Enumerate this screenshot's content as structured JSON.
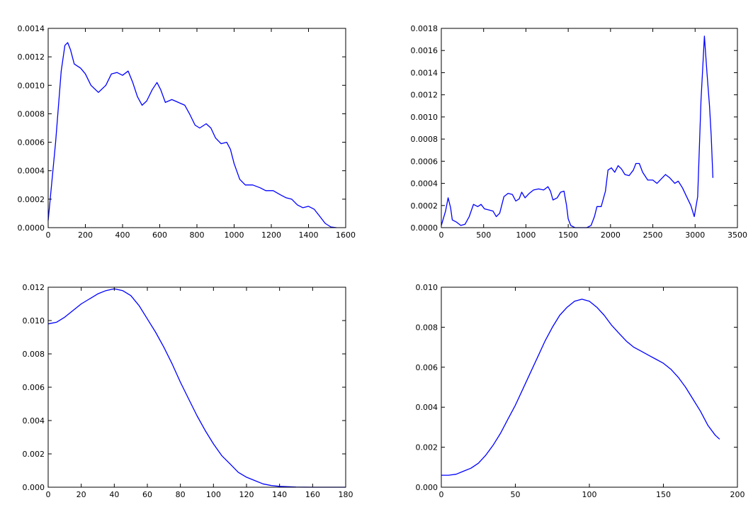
{
  "chart_data": [
    {
      "type": "line",
      "title": "",
      "xlabel": "",
      "ylabel": "",
      "xlim": [
        0,
        1600
      ],
      "ylim": [
        0,
        0.0014
      ],
      "xticks": [
        0,
        200,
        400,
        600,
        800,
        1000,
        1200,
        1400,
        1600
      ],
      "yticks": [
        0,
        0.0002,
        0.0004,
        0.0006,
        0.0008,
        0.001,
        0.0012,
        0.0014
      ],
      "xtick_labels": [
        "0",
        "200",
        "400",
        "600",
        "800",
        "1000",
        "1200",
        "1400",
        "1600"
      ],
      "ytick_labels": [
        "0.0000",
        "0.0002",
        "0.0004",
        "0.0006",
        "0.0008",
        "0.0010",
        "0.0012",
        "0.0014"
      ],
      "grid": false,
      "series": [
        {
          "color": "#0000ff",
          "points": [
            [
              0,
              5e-05
            ],
            [
              40,
              0.0006
            ],
            [
              70,
              0.0011
            ],
            [
              90,
              0.00128
            ],
            [
              105,
              0.0013
            ],
            [
              120,
              0.00125
            ],
            [
              140,
              0.00115
            ],
            [
              175,
              0.00112
            ],
            [
              200,
              0.00108
            ],
            [
              230,
              0.001
            ],
            [
              270,
              0.00095
            ],
            [
              310,
              0.001
            ],
            [
              340,
              0.00108
            ],
            [
              370,
              0.00109
            ],
            [
              400,
              0.00107
            ],
            [
              430,
              0.0011
            ],
            [
              455,
              0.00102
            ],
            [
              480,
              0.00092
            ],
            [
              505,
              0.00086
            ],
            [
              530,
              0.00089
            ],
            [
              560,
              0.00097
            ],
            [
              585,
              0.00102
            ],
            [
              605,
              0.00097
            ],
            [
              630,
              0.00088
            ],
            [
              665,
              0.0009
            ],
            [
              700,
              0.00088
            ],
            [
              735,
              0.00086
            ],
            [
              760,
              0.0008
            ],
            [
              790,
              0.00072
            ],
            [
              815,
              0.0007
            ],
            [
              850,
              0.00073
            ],
            [
              875,
              0.0007
            ],
            [
              900,
              0.00063
            ],
            [
              930,
              0.00059
            ],
            [
              960,
              0.0006
            ],
            [
              980,
              0.00055
            ],
            [
              1000,
              0.00045
            ],
            [
              1030,
              0.00034
            ],
            [
              1060,
              0.0003
            ],
            [
              1100,
              0.0003
            ],
            [
              1140,
              0.00028
            ],
            [
              1170,
              0.00026
            ],
            [
              1210,
              0.00026
            ],
            [
              1250,
              0.00023
            ],
            [
              1280,
              0.00021
            ],
            [
              1310,
              0.0002
            ],
            [
              1340,
              0.00016
            ],
            [
              1370,
              0.00014
            ],
            [
              1400,
              0.00015
            ],
            [
              1430,
              0.00013
            ],
            [
              1460,
              8e-05
            ],
            [
              1490,
              3e-05
            ],
            [
              1520,
              5e-06
            ],
            [
              1550,
              0
            ]
          ]
        }
      ]
    },
    {
      "type": "line",
      "title": "",
      "xlabel": "",
      "ylabel": "",
      "xlim": [
        0,
        3500
      ],
      "ylim": [
        0,
        0.0018
      ],
      "xticks": [
        0,
        500,
        1000,
        1500,
        2000,
        2500,
        3000,
        3500
      ],
      "yticks": [
        0,
        0.0002,
        0.0004,
        0.0006,
        0.0008,
        0.001,
        0.0012,
        0.0014,
        0.0016,
        0.0018
      ],
      "xtick_labels": [
        "0",
        "500",
        "1000",
        "1500",
        "2000",
        "2500",
        "3000",
        "3500"
      ],
      "ytick_labels": [
        "0.0000",
        "0.0002",
        "0.0004",
        "0.0006",
        "0.0008",
        "0.0010",
        "0.0012",
        "0.0014",
        "0.0016",
        "0.0018"
      ],
      "grid": false,
      "series": [
        {
          "color": "#0000ff",
          "points": [
            [
              0,
              2e-05
            ],
            [
              50,
              0.00015
            ],
            [
              80,
              0.00027
            ],
            [
              110,
              0.00018
            ],
            [
              130,
              7e-05
            ],
            [
              180,
              5e-05
            ],
            [
              230,
              2e-05
            ],
            [
              280,
              3e-05
            ],
            [
              330,
              0.0001
            ],
            [
              380,
              0.00021
            ],
            [
              430,
              0.00019
            ],
            [
              470,
              0.00021
            ],
            [
              510,
              0.00017
            ],
            [
              560,
              0.00016
            ],
            [
              610,
              0.00015
            ],
            [
              650,
              0.0001
            ],
            [
              690,
              0.00013
            ],
            [
              740,
              0.00028
            ],
            [
              790,
              0.00031
            ],
            [
              840,
              0.0003
            ],
            [
              880,
              0.00024
            ],
            [
              920,
              0.00026
            ],
            [
              950,
              0.00032
            ],
            [
              990,
              0.00027
            ],
            [
              1040,
              0.00031
            ],
            [
              1090,
              0.00034
            ],
            [
              1150,
              0.00035
            ],
            [
              1210,
              0.00034
            ],
            [
              1260,
              0.00037
            ],
            [
              1290,
              0.00033
            ],
            [
              1320,
              0.00025
            ],
            [
              1370,
              0.00027
            ],
            [
              1410,
              0.00032
            ],
            [
              1450,
              0.00033
            ],
            [
              1480,
              0.0002
            ],
            [
              1500,
              8e-05
            ],
            [
              1530,
              2e-05
            ],
            [
              1580,
              0
            ],
            [
              1650,
              0
            ],
            [
              1720,
              0
            ],
            [
              1770,
              2e-05
            ],
            [
              1810,
              0.0001
            ],
            [
              1840,
              0.00019
            ],
            [
              1890,
              0.00019
            ],
            [
              1940,
              0.00033
            ],
            [
              1970,
              0.00052
            ],
            [
              2010,
              0.00054
            ],
            [
              2050,
              0.0005
            ],
            [
              2090,
              0.00056
            ],
            [
              2130,
              0.00053
            ],
            [
              2170,
              0.00048
            ],
            [
              2220,
              0.00047
            ],
            [
              2270,
              0.00052
            ],
            [
              2300,
              0.00058
            ],
            [
              2340,
              0.00058
            ],
            [
              2380,
              0.0005
            ],
            [
              2440,
              0.00043
            ],
            [
              2500,
              0.00043
            ],
            [
              2550,
              0.0004
            ],
            [
              2600,
              0.00044
            ],
            [
              2650,
              0.00048
            ],
            [
              2700,
              0.00045
            ],
            [
              2760,
              0.0004
            ],
            [
              2800,
              0.00042
            ],
            [
              2850,
              0.00036
            ],
            [
              2900,
              0.00028
            ],
            [
              2950,
              0.0002
            ],
            [
              2990,
              0.0001
            ],
            [
              3030,
              0.00028
            ],
            [
              3070,
              0.00115
            ],
            [
              3110,
              0.00173
            ],
            [
              3140,
              0.0014
            ],
            [
              3170,
              0.0011
            ],
            [
              3190,
              0.00083
            ],
            [
              3210,
              0.00045
            ]
          ]
        }
      ]
    },
    {
      "type": "line",
      "title": "",
      "xlabel": "",
      "ylabel": "",
      "xlim": [
        0,
        180
      ],
      "ylim": [
        0,
        0.012
      ],
      "xticks": [
        0,
        20,
        40,
        60,
        80,
        100,
        120,
        140,
        160,
        180
      ],
      "yticks": [
        0,
        0.002,
        0.004,
        0.006,
        0.008,
        0.01,
        0.012
      ],
      "xtick_labels": [
        "0",
        "20",
        "40",
        "60",
        "80",
        "100",
        "120",
        "140",
        "160",
        "180"
      ],
      "ytick_labels": [
        "0.000",
        "0.002",
        "0.004",
        "0.006",
        "0.008",
        "0.010",
        "0.012"
      ],
      "grid": false,
      "series": [
        {
          "color": "#0000ff",
          "points": [
            [
              0,
              0.0098
            ],
            [
              5,
              0.0099
            ],
            [
              10,
              0.0102
            ],
            [
              15,
              0.0106
            ],
            [
              20,
              0.011
            ],
            [
              25,
              0.0113
            ],
            [
              30,
              0.0116
            ],
            [
              35,
              0.0118
            ],
            [
              40,
              0.0119
            ],
            [
              45,
              0.0118
            ],
            [
              50,
              0.0115
            ],
            [
              55,
              0.0109
            ],
            [
              60,
              0.0101
            ],
            [
              65,
              0.0093
            ],
            [
              70,
              0.0084
            ],
            [
              75,
              0.0074
            ],
            [
              80,
              0.0063
            ],
            [
              85,
              0.0053
            ],
            [
              90,
              0.0043
            ],
            [
              95,
              0.0034
            ],
            [
              100,
              0.0026
            ],
            [
              105,
              0.0019
            ],
            [
              110,
              0.0014
            ],
            [
              115,
              0.0009
            ],
            [
              120,
              0.0006
            ],
            [
              125,
              0.0004
            ],
            [
              130,
              0.0002
            ],
            [
              135,
              0.0001
            ],
            [
              140,
              5e-05
            ],
            [
              150,
              1e-05
            ],
            [
              160,
              0
            ],
            [
              170,
              0
            ],
            [
              180,
              0
            ]
          ]
        }
      ]
    },
    {
      "type": "line",
      "title": "",
      "xlabel": "",
      "ylabel": "",
      "xlim": [
        0,
        200
      ],
      "ylim": [
        0,
        0.01
      ],
      "xticks": [
        0,
        50,
        100,
        150,
        200
      ],
      "yticks": [
        0,
        0.002,
        0.004,
        0.006,
        0.008,
        0.01
      ],
      "xtick_labels": [
        "0",
        "50",
        "100",
        "150",
        "200"
      ],
      "ytick_labels": [
        "0.000",
        "0.002",
        "0.004",
        "0.006",
        "0.008",
        "0.010"
      ],
      "grid": false,
      "series": [
        {
          "color": "#0000ff",
          "points": [
            [
              0,
              0.0006
            ],
            [
              5,
              0.0006
            ],
            [
              10,
              0.00065
            ],
            [
              15,
              0.0008
            ],
            [
              20,
              0.00095
            ],
            [
              25,
              0.0012
            ],
            [
              30,
              0.0016
            ],
            [
              35,
              0.0021
            ],
            [
              40,
              0.0027
            ],
            [
              45,
              0.0034
            ],
            [
              50,
              0.0041
            ],
            [
              55,
              0.0049
            ],
            [
              60,
              0.0057
            ],
            [
              65,
              0.0065
            ],
            [
              70,
              0.0073
            ],
            [
              75,
              0.008
            ],
            [
              80,
              0.0086
            ],
            [
              85,
              0.009
            ],
            [
              90,
              0.0093
            ],
            [
              95,
              0.0094
            ],
            [
              100,
              0.0093
            ],
            [
              105,
              0.009
            ],
            [
              110,
              0.0086
            ],
            [
              115,
              0.0081
            ],
            [
              120,
              0.0077
            ],
            [
              125,
              0.0073
            ],
            [
              130,
              0.007
            ],
            [
              135,
              0.0068
            ],
            [
              140,
              0.0066
            ],
            [
              145,
              0.0064
            ],
            [
              150,
              0.0062
            ],
            [
              155,
              0.0059
            ],
            [
              160,
              0.0055
            ],
            [
              165,
              0.005
            ],
            [
              170,
              0.0044
            ],
            [
              175,
              0.0038
            ],
            [
              180,
              0.0031
            ],
            [
              185,
              0.0026
            ],
            [
              188,
              0.0024
            ]
          ]
        }
      ]
    }
  ]
}
